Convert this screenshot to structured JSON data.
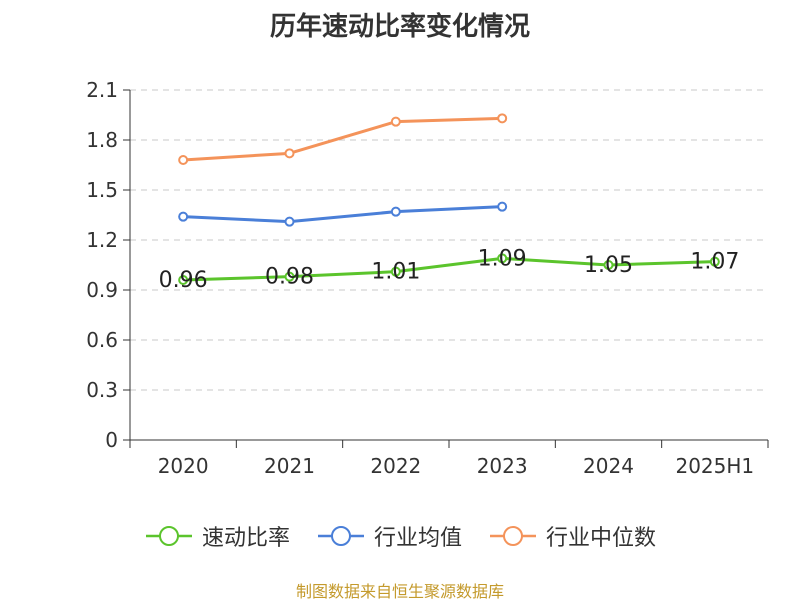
{
  "chart_data": {
    "type": "line",
    "title": "历年速动比率变化情况",
    "categories": [
      "2020",
      "2021",
      "2022",
      "2023",
      "2024",
      "2025H1"
    ],
    "y_ticks": [
      "0",
      "0.3",
      "0.6",
      "0.9",
      "1.2",
      "1.5",
      "1.8",
      "2.1"
    ],
    "ylim": [
      0,
      2.1
    ],
    "grid": true,
    "legend_position": "bottom",
    "series": [
      {
        "name": "速动比率",
        "color": "#5bc42c",
        "labeled": true,
        "values": [
          0.96,
          0.98,
          1.01,
          1.09,
          1.05,
          1.07
        ],
        "labels": [
          "0.96",
          "0.98",
          "1.01",
          "1.09",
          "1.05",
          "1.07"
        ]
      },
      {
        "name": "行业均值",
        "color": "#4a7fd8",
        "labeled": false,
        "values": [
          1.34,
          1.31,
          1.37,
          1.4,
          null,
          null
        ]
      },
      {
        "name": "行业中位数",
        "color": "#f4935a",
        "labeled": false,
        "values": [
          1.68,
          1.72,
          1.91,
          1.93,
          null,
          null
        ]
      }
    ]
  },
  "source": "制图数据来自恒生聚源数据库"
}
